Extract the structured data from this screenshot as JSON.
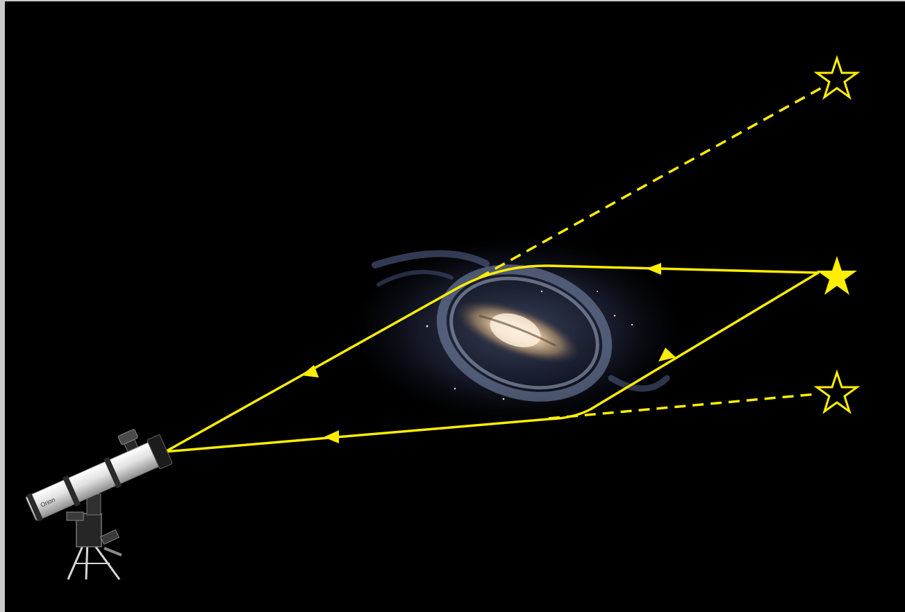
{
  "colors": {
    "background": "#000000",
    "frame": "#c9c9c9",
    "light_path": "#ffee00",
    "galaxy_core": "#f3dcc0",
    "galaxy_arm": "#7f8fb4",
    "telescope_body": "#e4e4e4",
    "telescope_mount": "#2a2a2a"
  },
  "icons": {
    "observer": "telescope-icon",
    "lens": "barred-spiral-galaxy",
    "source": "star-icon",
    "apparent_images": "star-outline-icon"
  },
  "telescope_label": "Orion"
}
